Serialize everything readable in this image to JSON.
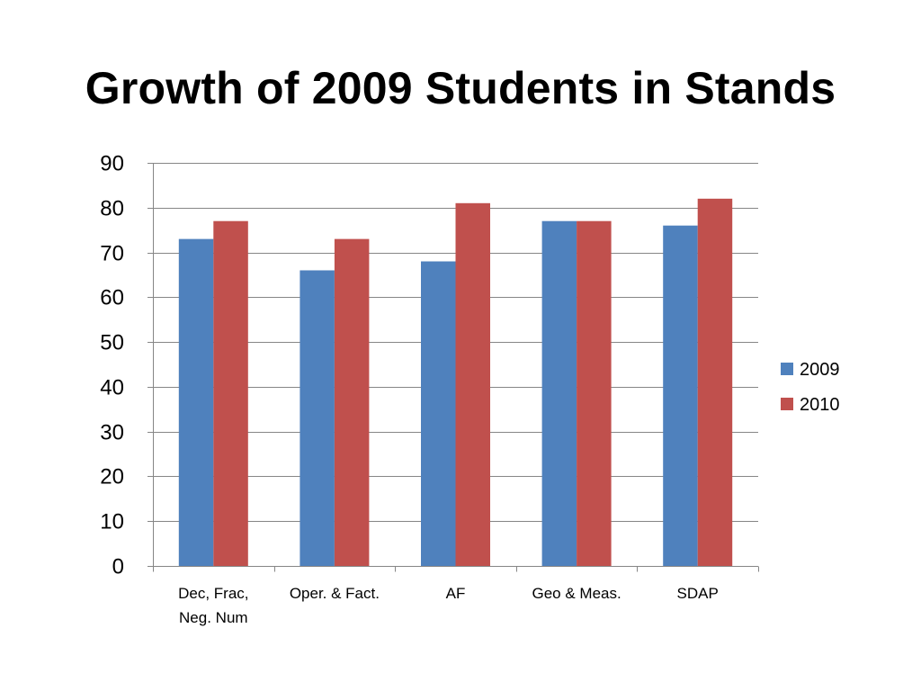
{
  "slide": {
    "title": "Growth of 2009 Students in Stands"
  },
  "chart_data": {
    "type": "bar",
    "title": "",
    "xlabel": "",
    "ylabel": "",
    "categories": [
      [
        "Dec, Frac,",
        "Neg. Num"
      ],
      [
        "Oper. & Fact."
      ],
      [
        "AF"
      ],
      [
        "Geo & Meas."
      ],
      [
        "SDAP"
      ]
    ],
    "series": [
      {
        "name": "2009",
        "color": "#4F81BD",
        "values": [
          73,
          66,
          68,
          77,
          76
        ]
      },
      {
        "name": "2010",
        "color": "#C0504D",
        "values": [
          77,
          73,
          81,
          77,
          82
        ]
      }
    ],
    "ylim": [
      0,
      90
    ],
    "yticks": [
      0,
      10,
      20,
      30,
      40,
      50,
      60,
      70,
      80,
      90
    ],
    "grid": true,
    "legend_position": "right"
  }
}
